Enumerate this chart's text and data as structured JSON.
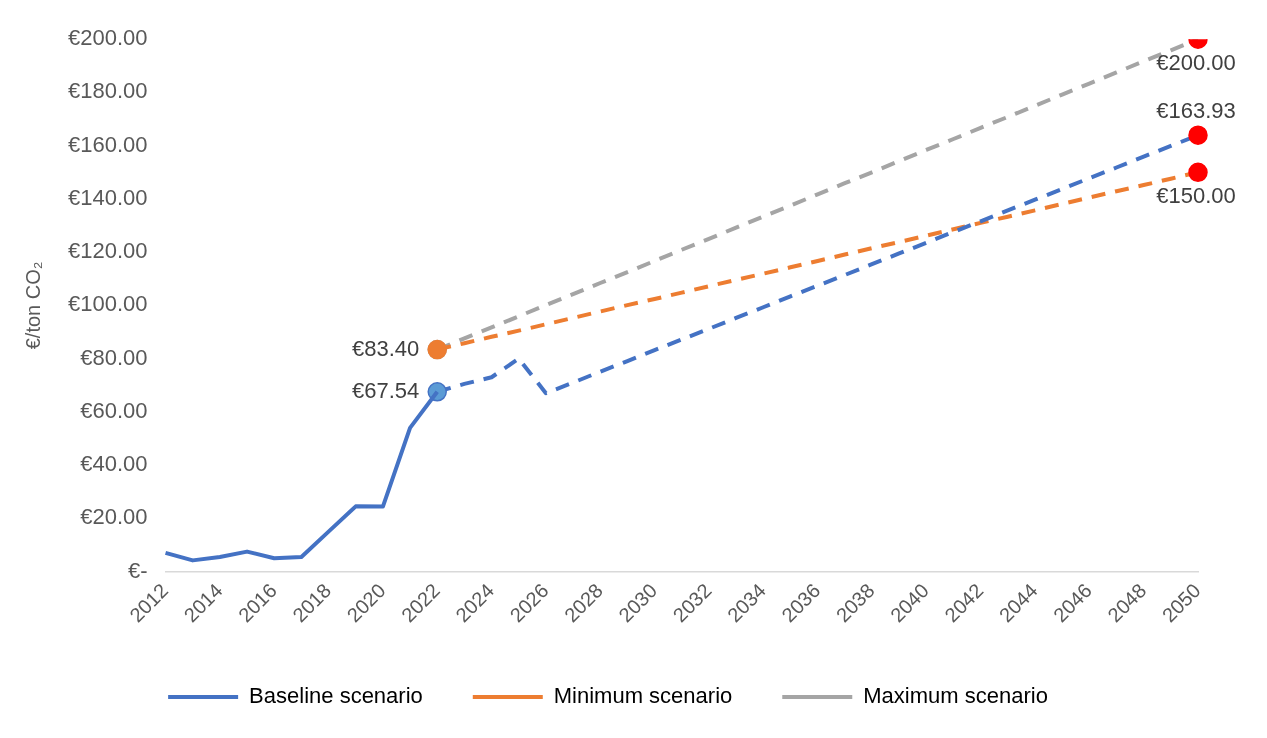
{
  "chart_data": {
    "type": "line",
    "ylabel": "€/ton CO₂",
    "categories": [
      "2012",
      null,
      "2014",
      null,
      "2016",
      null,
      "2018",
      null,
      "2020",
      null,
      "2022",
      null,
      "2024",
      null,
      "2026",
      null,
      "2028",
      null,
      "2030",
      null,
      "2032",
      null,
      "2034",
      null,
      "2036",
      null,
      "2038",
      null,
      "2040",
      null,
      "2042",
      null,
      "2044",
      null,
      "2046",
      null,
      "2048",
      null,
      "2050"
    ],
    "ylim": [
      0,
      200
    ],
    "yticks": [
      {
        "value": 0,
        "label": "€-"
      },
      {
        "value": 20,
        "label": "€20.00"
      },
      {
        "value": 40,
        "label": "€40.00"
      },
      {
        "value": 60,
        "label": "€60.00"
      },
      {
        "value": 80,
        "label": "€80.00"
      },
      {
        "value": 100,
        "label": "€100.00"
      },
      {
        "value": 120,
        "label": "€120.00"
      },
      {
        "value": 140,
        "label": "€140.00"
      },
      {
        "value": 160,
        "label": "€160.00"
      },
      {
        "value": 180,
        "label": "€180.00"
      },
      {
        "value": 200,
        "label": "€200.00"
      }
    ],
    "grid": false,
    "legend": "bottom",
    "series": [
      {
        "name": "Baseline scenario",
        "color": "#4472c4",
        "line_style": "solid",
        "values": [
          7.0,
          4.2,
          5.5,
          7.5,
          5.0,
          5.5,
          15.0,
          24.5,
          24.4,
          54.0,
          67.54,
          null,
          null,
          null,
          null,
          null,
          null,
          null,
          null,
          null,
          null,
          null,
          null,
          null,
          null,
          null,
          null,
          null,
          null,
          null,
          null,
          null,
          null,
          null,
          null,
          null,
          null,
          null,
          null
        ]
      },
      {
        "color": "#4472c4",
        "line_style": "dashed",
        "values": [
          null,
          null,
          null,
          null,
          null,
          null,
          null,
          null,
          null,
          null,
          67.54,
          70.5,
          73.0,
          80.0,
          67.0,
          71.0,
          75.1,
          79.1,
          83.2,
          87.2,
          91.2,
          95.3,
          99.3,
          103.4,
          107.4,
          111.4,
          115.5,
          119.5,
          123.5,
          127.6,
          131.6,
          135.7,
          139.7,
          143.7,
          147.8,
          151.8,
          155.9,
          159.9,
          163.93
        ],
        "colors": [
          null,
          null,
          null,
          null,
          null,
          null,
          null,
          null,
          null,
          null,
          "#5b9bd5",
          null,
          null,
          null,
          null,
          null,
          null,
          null,
          null,
          null,
          null,
          null,
          null,
          null,
          null,
          null,
          null,
          null,
          null,
          null,
          null,
          null,
          null,
          null,
          null,
          null,
          null,
          null,
          "#ff0000"
        ],
        "value_labels": [
          null,
          null,
          null,
          null,
          null,
          null,
          null,
          null,
          null,
          null,
          "€67.54",
          null,
          null,
          null,
          null,
          null,
          null,
          null,
          null,
          null,
          null,
          null,
          null,
          null,
          null,
          null,
          null,
          null,
          null,
          null,
          null,
          null,
          null,
          null,
          null,
          null,
          null,
          null,
          "€163.93"
        ]
      },
      {
        "name": "Minimum scenario",
        "color": "#ed7d31",
        "line_style": "dashed",
        "values": [
          null,
          null,
          null,
          null,
          null,
          null,
          null,
          null,
          null,
          null,
          83.4,
          85.8,
          88.2,
          90.5,
          92.9,
          95.3,
          97.7,
          100.1,
          102.4,
          104.8,
          107.2,
          109.6,
          111.9,
          114.3,
          116.7,
          119.1,
          121.5,
          123.8,
          126.2,
          128.6,
          131.0,
          133.3,
          135.7,
          138.1,
          140.5,
          142.9,
          145.2,
          147.6,
          150.0
        ],
        "colors": [
          null,
          null,
          null,
          null,
          null,
          null,
          null,
          null,
          null,
          null,
          "#ed7d31",
          null,
          null,
          null,
          null,
          null,
          null,
          null,
          null,
          null,
          null,
          null,
          null,
          null,
          null,
          null,
          null,
          null,
          null,
          null,
          null,
          null,
          null,
          null,
          null,
          null,
          null,
          null,
          "#ff0000"
        ],
        "value_labels": [
          null,
          null,
          null,
          null,
          null,
          null,
          null,
          null,
          null,
          null,
          null,
          null,
          null,
          null,
          null,
          null,
          null,
          null,
          null,
          null,
          null,
          null,
          null,
          null,
          null,
          null,
          null,
          null,
          null,
          null,
          null,
          null,
          null,
          null,
          null,
          null,
          null,
          null,
          "€150.00"
        ]
      },
      {
        "name": "Maximum scenario",
        "color": "#a5a5a5",
        "line_style": "dashed",
        "values": [
          null,
          null,
          null,
          null,
          null,
          null,
          null,
          null,
          null,
          null,
          83.4,
          87.6,
          91.7,
          95.9,
          100.1,
          104.2,
          108.4,
          112.5,
          116.7,
          120.9,
          125.0,
          129.2,
          133.4,
          137.5,
          141.7,
          145.9,
          150.0,
          154.2,
          158.4,
          162.5,
          166.7,
          170.8,
          175.0,
          179.2,
          183.3,
          187.5,
          191.7,
          195.8,
          200.0
        ],
        "colors": [
          null,
          null,
          null,
          null,
          null,
          null,
          null,
          null,
          null,
          null,
          "#a5a5a5",
          null,
          null,
          null,
          null,
          null,
          null,
          null,
          null,
          null,
          null,
          null,
          null,
          null,
          null,
          null,
          null,
          null,
          null,
          null,
          null,
          null,
          null,
          null,
          null,
          null,
          null,
          null,
          "#ff0000"
        ],
        "value_labels": [
          null,
          null,
          null,
          null,
          null,
          null,
          null,
          null,
          null,
          null,
          "€83.40",
          null,
          null,
          null,
          null,
          null,
          null,
          null,
          null,
          null,
          null,
          null,
          null,
          null,
          null,
          null,
          null,
          null,
          null,
          null,
          null,
          null,
          null,
          null,
          null,
          null,
          null,
          null,
          "€200.00"
        ]
      }
    ]
  }
}
